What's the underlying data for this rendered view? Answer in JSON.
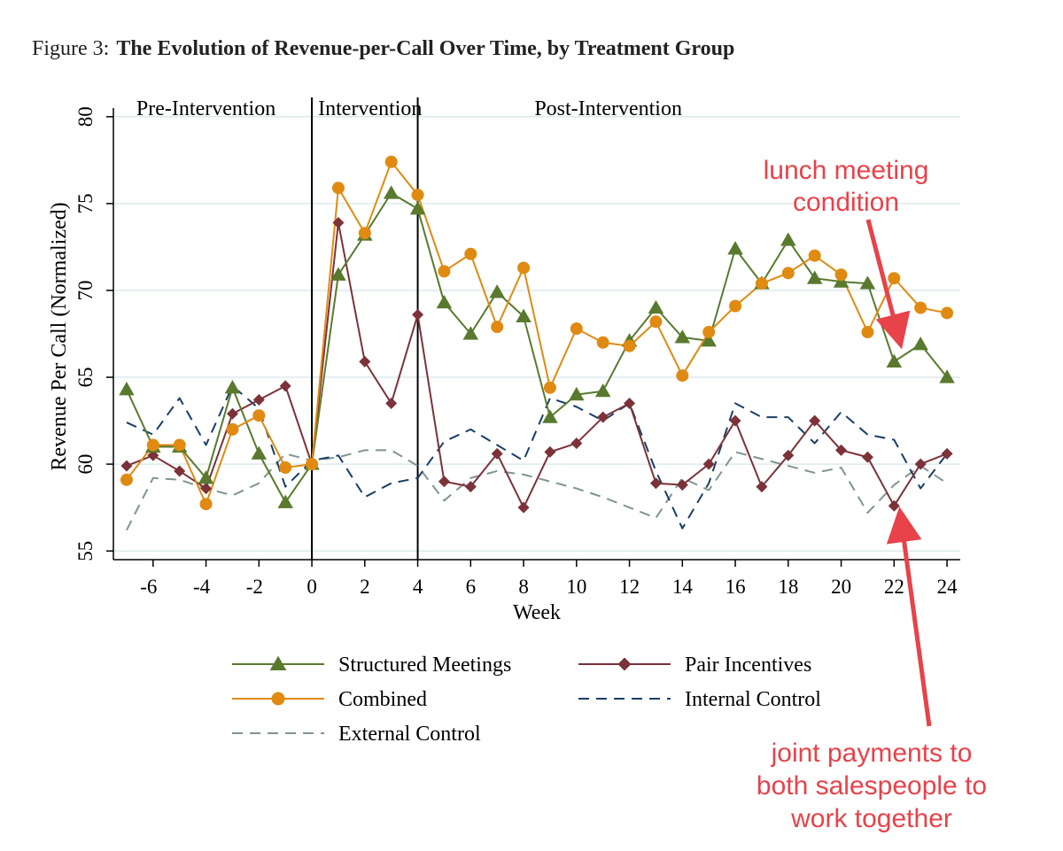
{
  "figure": {
    "label": "Figure 3:",
    "title": "The Evolution of Revenue-per-Call Over Time, by Treatment Group"
  },
  "chart_data": {
    "type": "line",
    "xlabel": "Week",
    "ylabel": "Revenue Per Call (Normalized)",
    "xlim": [
      -7.5,
      24.5
    ],
    "ylim": [
      54.5,
      80.5
    ],
    "x_ticks": [
      -6,
      -4,
      -2,
      0,
      2,
      4,
      6,
      8,
      10,
      12,
      14,
      16,
      18,
      20,
      22,
      24
    ],
    "y_ticks": [
      55,
      60,
      65,
      70,
      75,
      80
    ],
    "grid": "horizontal",
    "period_lines": [
      0,
      4
    ],
    "periods": [
      {
        "label": "Pre-Intervention",
        "x": -4.0
      },
      {
        "label": "Intervention",
        "x": 2.2
      },
      {
        "label": "Post-Intervention",
        "x": 11.2
      }
    ],
    "x": [
      -7,
      -6,
      -5,
      -4,
      -3,
      -2,
      -1,
      0,
      1,
      2,
      3,
      4,
      5,
      6,
      7,
      8,
      9,
      10,
      11,
      12,
      13,
      14,
      15,
      16,
      17,
      18,
      19,
      20,
      21,
      22,
      23,
      24
    ],
    "series": [
      {
        "name": "Structured Meetings",
        "color": "#597a2e",
        "marker": "triangle",
        "dash": "solid",
        "values": [
          64.3,
          61,
          61,
          59.2,
          64.4,
          60.6,
          57.8,
          60,
          70.9,
          73.2,
          75.6,
          74.7,
          69.3,
          67.5,
          69.9,
          68.5,
          62.7,
          64,
          64.2,
          67.1,
          69,
          67.3,
          67.1,
          72.4,
          70.4,
          72.9,
          70.7,
          70.5,
          70.4,
          65.9,
          66.9,
          65
        ]
      },
      {
        "name": "Pair Incentives",
        "color": "#7b3239",
        "marker": "diamond",
        "dash": "solid",
        "values": [
          59.9,
          60.5,
          59.6,
          58.6,
          62.9,
          63.7,
          64.5,
          60,
          73.9,
          65.9,
          63.5,
          68.6,
          59,
          58.7,
          60.6,
          57.5,
          60.7,
          61.2,
          62.7,
          63.5,
          58.9,
          58.8,
          60,
          62.5,
          58.7,
          60.5,
          62.5,
          60.8,
          60.4,
          57.6,
          60,
          60.6
        ]
      },
      {
        "name": "Combined",
        "color": "#e08a12",
        "marker": "circle",
        "dash": "solid",
        "values": [
          59.1,
          61.1,
          61.1,
          57.7,
          62,
          62.8,
          59.8,
          60,
          75.9,
          73.3,
          77.4,
          75.5,
          71.1,
          72.1,
          67.9,
          71.3,
          64.4,
          67.8,
          67,
          66.8,
          68.2,
          65.1,
          67.6,
          69.1,
          70.4,
          71,
          72,
          70.9,
          67.6,
          70.7,
          69,
          68.7
        ]
      },
      {
        "name": "Internal Control",
        "color": "#1a3e66",
        "marker": "none",
        "dash": "dashed",
        "values": [
          62.4,
          61.7,
          63.8,
          61.1,
          64.5,
          63.2,
          58.7,
          60.2,
          60.5,
          58.1,
          58.9,
          59.2,
          61.3,
          62,
          61.1,
          60.2,
          63.8,
          63.3,
          62.5,
          63.5,
          59.6,
          56.3,
          58.9,
          63.5,
          62.7,
          62.7,
          61.2,
          63,
          61.7,
          61.4,
          58.6,
          60.6
        ]
      },
      {
        "name": "External Control",
        "color": "#7f958e",
        "marker": "none",
        "dash": "dashed",
        "values": [
          56.2,
          59.2,
          59.1,
          58.6,
          58.2,
          58.9,
          60.6,
          60.2,
          60.4,
          60.8,
          60.8,
          59.9,
          57.9,
          59.2,
          59.6,
          59.4,
          59,
          58.6,
          58.1,
          57.5,
          56.9,
          59.2,
          58.5,
          60.7,
          60.3,
          59.9,
          59.5,
          59.8,
          57.2,
          58.8,
          59.9,
          58.9
        ]
      }
    ]
  },
  "annotations": [
    {
      "text": "lunch meeting condition",
      "color": "#e8424a"
    },
    {
      "text": "joint payments to both salespeople to work together",
      "color": "#e8424a"
    }
  ]
}
